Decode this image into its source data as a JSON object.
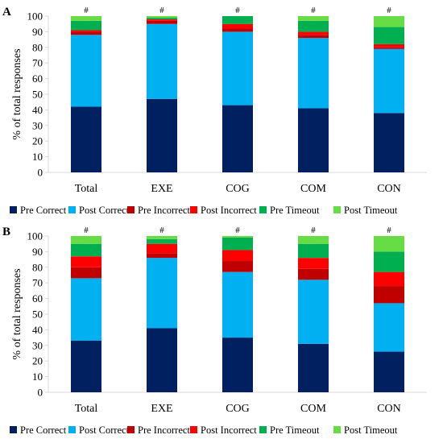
{
  "chart_data": [
    {
      "panel": "A",
      "type": "bar",
      "stacked": true,
      "ylabel": "% of total responses",
      "ylim": [
        0,
        100
      ],
      "yticks": [
        0,
        10,
        20,
        30,
        40,
        50,
        60,
        70,
        80,
        90,
        100
      ],
      "categories": [
        "Total",
        "EXE",
        "COG",
        "COM",
        "CON"
      ],
      "annotations": [
        "#",
        "#",
        "#",
        "#",
        "#"
      ],
      "legend_position": "bottom",
      "series": [
        {
          "name": "Pre Correct",
          "color": "#002060",
          "values": [
            42,
            47,
            43,
            41,
            38
          ]
        },
        {
          "name": "Post Correct",
          "color": "#00B0F0",
          "values": [
            46,
            48,
            47,
            45,
            41
          ]
        },
        {
          "name": "Pre Incorrect",
          "color": "#C00000",
          "values": [
            2,
            2,
            2,
            2,
            1
          ]
        },
        {
          "name": "Post Incorrect",
          "color": "#FF0000",
          "values": [
            1,
            1,
            3,
            2,
            2
          ]
        },
        {
          "name": "Pre Timeout",
          "color": "#00B050",
          "values": [
            6,
            1,
            5,
            7,
            11
          ]
        },
        {
          "name": "Post Timeout",
          "color": "#66DD44",
          "values": [
            3,
            1,
            0,
            3,
            7
          ]
        }
      ]
    },
    {
      "panel": "B",
      "type": "bar",
      "stacked": true,
      "ylabel": "% of total responses",
      "ylim": [
        0,
        100
      ],
      "yticks": [
        0,
        10,
        20,
        30,
        40,
        50,
        60,
        70,
        80,
        90,
        100
      ],
      "categories": [
        "Total",
        "EXE",
        "COG",
        "COM",
        "CON"
      ],
      "annotations": [
        "#",
        "#",
        "#",
        "#",
        "#"
      ],
      "legend_position": "bottom",
      "series": [
        {
          "name": "Pre Correct",
          "color": "#002060",
          "values": [
            33,
            41,
            35,
            31,
            26
          ]
        },
        {
          "name": "Post Correct",
          "color": "#00B0F0",
          "values": [
            40,
            45,
            42,
            41,
            31
          ]
        },
        {
          "name": "Pre Incorrect",
          "color": "#C00000",
          "values": [
            7,
            3,
            7,
            7,
            11
          ]
        },
        {
          "name": "Post Incorrect",
          "color": "#FF0000",
          "values": [
            7,
            6,
            7,
            7,
            9
          ]
        },
        {
          "name": "Pre Timeout",
          "color": "#00B050",
          "values": [
            8,
            3,
            8,
            9,
            13
          ]
        },
        {
          "name": "Post Timeout",
          "color": "#66DD44",
          "values": [
            5,
            2,
            1,
            5,
            10
          ]
        }
      ]
    }
  ]
}
